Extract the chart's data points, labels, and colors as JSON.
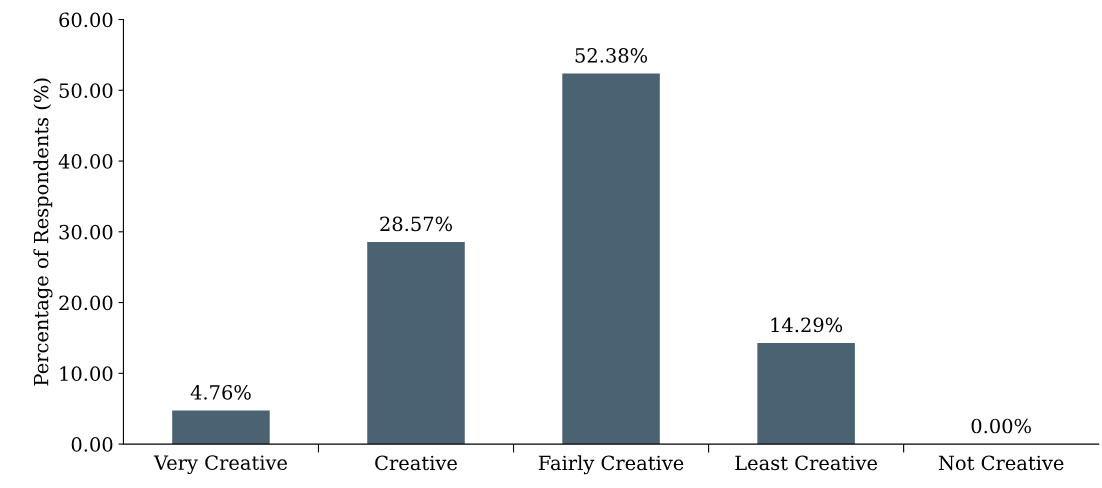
{
  "chart_data": {
    "type": "bar",
    "ylabel": "Percentage of Respondents (%)",
    "categories": [
      "Very Creative",
      "Creative",
      "Fairly Creative",
      "Least Creative",
      "Not Creative"
    ],
    "values": [
      4.76,
      28.57,
      52.38,
      14.29,
      0.0
    ],
    "value_labels": [
      "4.76%",
      "28.57%",
      "52.38%",
      "14.29%",
      "0.00%"
    ],
    "color": "#4a6272",
    "ylim": [
      0,
      60
    ],
    "yticks": [
      {
        "value": 0,
        "label": "0.00"
      },
      {
        "value": 10,
        "label": "10.00"
      },
      {
        "value": 20,
        "label": "20.00"
      },
      {
        "value": 30,
        "label": "30.00"
      },
      {
        "value": 40,
        "label": "40.00"
      },
      {
        "value": 50,
        "label": "50.00"
      },
      {
        "value": 60,
        "label": "60.00"
      }
    ],
    "grid": false,
    "legend": false
  }
}
